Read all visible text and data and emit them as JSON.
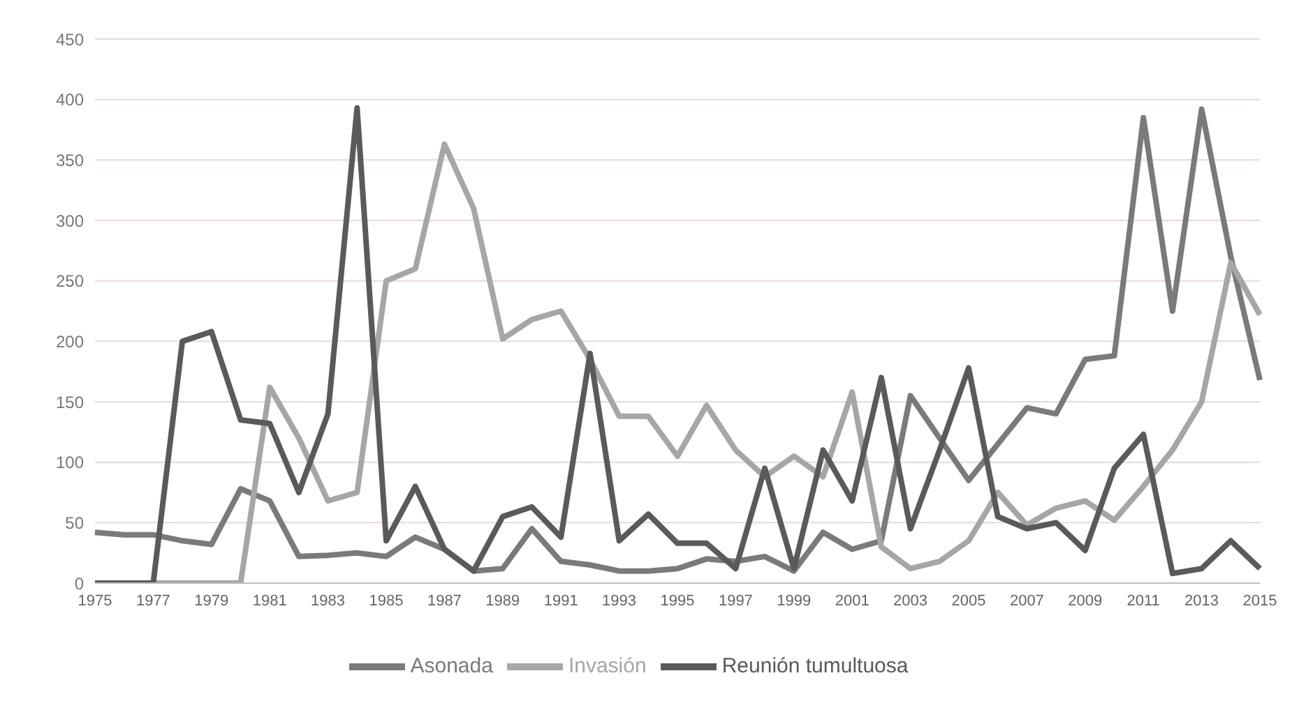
{
  "chart_data": {
    "type": "line",
    "categories": [
      "1975",
      null,
      "1977",
      null,
      "1979",
      null,
      "1981",
      null,
      "1983",
      null,
      "1985",
      null,
      "1987",
      null,
      "1989",
      null,
      "1991",
      null,
      "1993",
      null,
      "1995",
      null,
      "1997",
      null,
      "1999",
      null,
      "2001",
      null,
      "2003",
      null,
      "2005",
      null,
      "2007",
      null,
      "2009",
      null,
      "2011",
      null,
      "2013",
      null,
      "2015"
    ],
    "series": [
      {
        "name": "Asonada",
        "color": "#7a7a7a",
        "values": [
          42,
          40,
          40,
          35,
          32,
          78,
          68,
          22,
          23,
          25,
          22,
          38,
          28,
          10,
          12,
          45,
          18,
          15,
          10,
          10,
          12,
          20,
          18,
          22,
          10,
          42,
          28,
          35,
          155,
          120,
          85,
          115,
          145,
          140,
          185,
          188,
          385,
          225,
          392,
          270,
          168
        ]
      },
      {
        "name": "Invasión",
        "color": "#a6a6a6",
        "values": [
          0,
          0,
          0,
          0,
          0,
          0,
          162,
          120,
          68,
          75,
          250,
          260,
          363,
          310,
          202,
          218,
          225,
          185,
          138,
          138,
          105,
          147,
          110,
          88,
          105,
          88,
          158,
          30,
          12,
          18,
          35,
          75,
          48,
          62,
          68,
          52,
          80,
          110,
          150,
          265,
          222
        ]
      },
      {
        "name": "Reunión tumultuosa",
        "color": "#5a5a5a",
        "values": [
          0,
          0,
          0,
          200,
          208,
          135,
          132,
          75,
          140,
          393,
          35,
          80,
          28,
          10,
          55,
          63,
          38,
          190,
          35,
          57,
          33,
          33,
          12,
          95,
          12,
          110,
          68,
          170,
          45,
          110,
          178,
          55,
          45,
          50,
          27,
          95,
          123,
          8,
          12,
          35,
          12
        ]
      }
    ],
    "ylim": [
      0,
      450
    ],
    "yticks": [
      0,
      50,
      100,
      150,
      200,
      250,
      300,
      350,
      400,
      450
    ],
    "grid": "y",
    "legend": "bottom",
    "marker": "none",
    "line_style": "solid"
  }
}
